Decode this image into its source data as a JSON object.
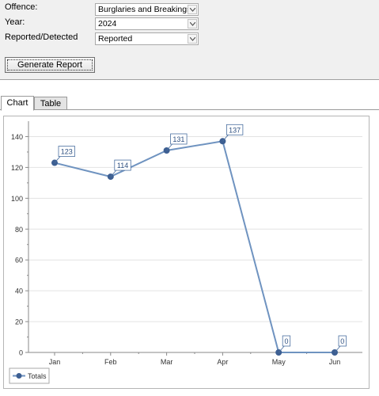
{
  "form": {
    "offence_label": "Offence:",
    "offence_value": "Burglaries and Breakings",
    "year_label": "Year:",
    "year_value": "2024",
    "reported_label": "Reported/Detected",
    "reported_value": "Reported",
    "generate_label": "Generate Report"
  },
  "tabs": [
    {
      "label": "Chart",
      "active": true
    },
    {
      "label": "Table",
      "active": false
    }
  ],
  "colors": {
    "line": "#6f93c0",
    "marker": "#3d5f92",
    "label_border": "#4a6fa0"
  },
  "chart_data": {
    "type": "line",
    "categories": [
      "Jan",
      "Feb",
      "Mar",
      "Apr",
      "May",
      "Jun"
    ],
    "series": [
      {
        "name": "Totals",
        "values": [
          123,
          114,
          131,
          137,
          0,
          0
        ]
      }
    ],
    "ylim": [
      0,
      150
    ],
    "yticks": [
      0,
      20,
      40,
      60,
      80,
      100,
      120,
      140
    ],
    "grid": true,
    "legend": "bottom-left"
  }
}
